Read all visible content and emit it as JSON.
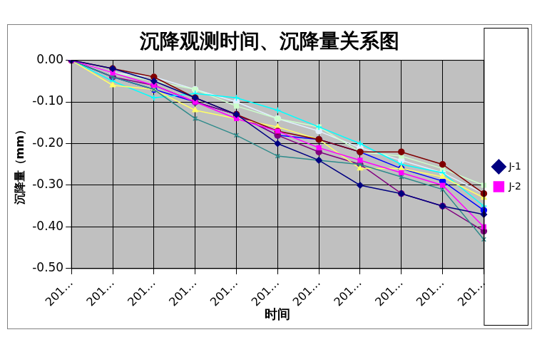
{
  "chart_data": {
    "type": "line",
    "title": "沉降观测时间、沉降量关系图",
    "x_label": "时间",
    "y_label": "沉降量（mm）",
    "categories": [
      "201…",
      "201…",
      "201…",
      "201…",
      "201…",
      "201…",
      "201…",
      "201…",
      "201…",
      "201…",
      "201…"
    ],
    "series": [
      {
        "name": "J-1",
        "color": "#000080",
        "marker": "diamond",
        "values": [
          0,
          -0.02,
          -0.05,
          -0.09,
          -0.13,
          -0.2,
          -0.24,
          -0.3,
          -0.32,
          -0.35,
          -0.37
        ]
      },
      {
        "name": "J-2",
        "color": "#ff00ff",
        "marker": "square",
        "values": [
          0,
          -0.03,
          -0.06,
          -0.1,
          -0.14,
          -0.17,
          -0.21,
          -0.24,
          -0.27,
          -0.3,
          -0.4
        ]
      },
      {
        "color": "#800000",
        "marker": "circle",
        "values": [
          0,
          -0.02,
          -0.04,
          -0.09,
          -0.13,
          -0.17,
          -0.19,
          -0.22,
          -0.22,
          -0.25,
          -0.32
        ]
      },
      {
        "color": "#2e8b8b",
        "marker": "x",
        "values": [
          0,
          -0.04,
          -0.07,
          -0.14,
          -0.18,
          -0.23,
          -0.24,
          -0.25,
          -0.28,
          -0.31,
          -0.43
        ]
      },
      {
        "color": "#ffff66",
        "marker": "triangle",
        "values": [
          0,
          -0.06,
          -0.07,
          -0.12,
          -0.14,
          -0.16,
          -0.19,
          -0.26,
          -0.26,
          -0.28,
          -0.33
        ]
      },
      {
        "color": "#00ffff",
        "marker": "cross",
        "values": [
          0,
          -0.05,
          -0.09,
          -0.08,
          -0.09,
          -0.12,
          -0.16,
          -0.2,
          -0.25,
          -0.27,
          -0.35
        ]
      },
      {
        "color": "#ccffcc",
        "marker": "square",
        "values": [
          0,
          -0.03,
          -0.05,
          -0.07,
          -0.11,
          -0.14,
          -0.16,
          -0.22,
          -0.23,
          -0.26,
          -0.3
        ]
      },
      {
        "color": "#800080",
        "marker": "circle",
        "values": [
          0,
          -0.04,
          -0.06,
          -0.1,
          -0.13,
          -0.18,
          -0.22,
          -0.25,
          -0.32,
          -0.35,
          -0.41
        ]
      },
      {
        "color": "#e0f0ff",
        "marker": "circle",
        "values": [
          0,
          -0.03,
          -0.04,
          -0.07,
          -0.1,
          -0.14,
          -0.17,
          -0.21,
          -0.24,
          -0.27,
          -0.32
        ]
      },
      {
        "color": "#0000ff",
        "marker": "circle",
        "values": [
          0,
          -0.04,
          -0.07,
          -0.1,
          -0.13,
          -0.18,
          -0.19,
          -0.22,
          -0.26,
          -0.29,
          -0.36
        ]
      }
    ],
    "ylim": [
      -0.5,
      0
    ],
    "yticks": [
      {
        "value": 0,
        "label": "0.00"
      },
      {
        "value": -0.1,
        "label": "-0.10"
      },
      {
        "value": -0.2,
        "label": "-0.20"
      },
      {
        "value": -0.3,
        "label": "-0.30"
      },
      {
        "value": -0.4,
        "label": "-0.40"
      },
      {
        "value": -0.5,
        "label": "-0.50"
      }
    ],
    "grid": true,
    "legend": "right"
  }
}
